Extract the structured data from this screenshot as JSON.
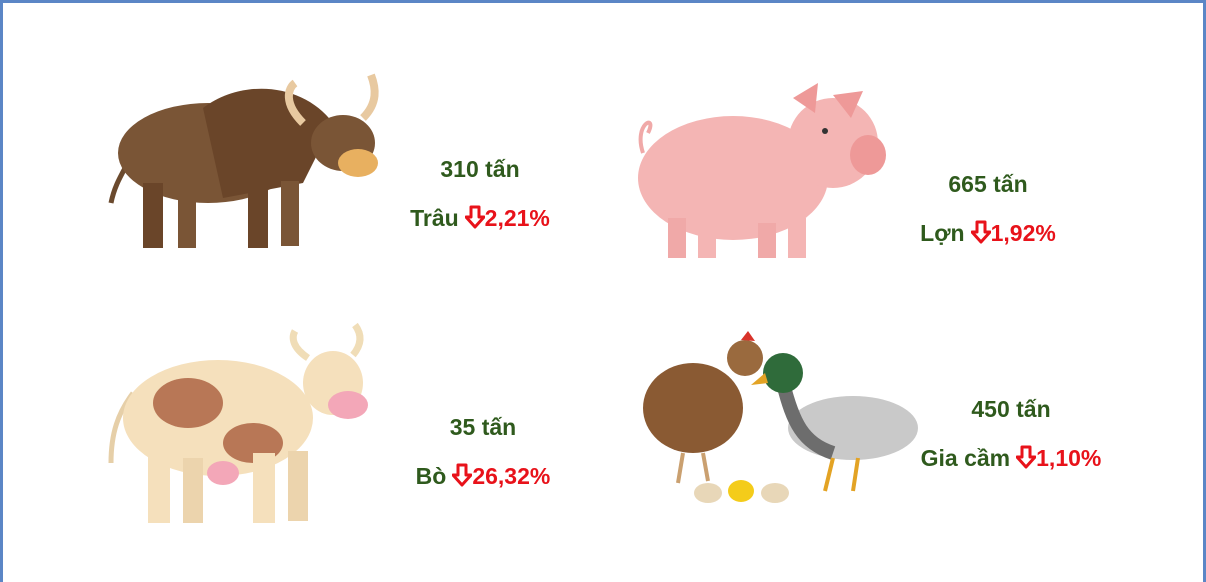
{
  "items": [
    {
      "amount": "310 tấn",
      "name": "Trâu",
      "change": "2,21%"
    },
    {
      "amount": "665 tấn",
      "name": "Lợn",
      "change": "1,92%"
    },
    {
      "amount": "35 tấn",
      "name": "Bò",
      "change": "26,32%"
    },
    {
      "amount": "450 tấn",
      "name": "Gia cầm",
      "change": "1,10%"
    }
  ]
}
